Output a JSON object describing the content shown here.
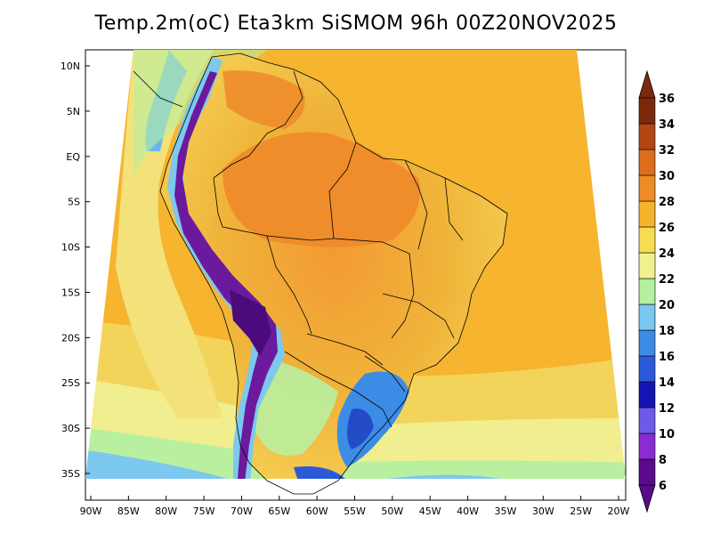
{
  "title": "Temp.2m(oC) Eta3km SiSMOM 96h 00Z20NOV2025",
  "map": {
    "lat_labels": [
      "10N",
      "5N",
      "EQ",
      "5S",
      "10S",
      "15S",
      "20S",
      "25S",
      "30S",
      "35S"
    ],
    "lat_values": [
      10,
      5,
      0,
      -5,
      -10,
      -15,
      -20,
      -25,
      -30,
      -35
    ],
    "lon_labels": [
      "90W",
      "85W",
      "80W",
      "75W",
      "70W",
      "65W",
      "60W",
      "55W",
      "50W",
      "45W",
      "40W",
      "35W",
      "30W",
      "25W",
      "20W"
    ],
    "lon_values": [
      -90,
      -85,
      -80,
      -75,
      -70,
      -65,
      -60,
      -55,
      -50,
      -45,
      -40,
      -35,
      -30,
      -25,
      -20
    ],
    "lat_range": [
      -38,
      12
    ],
    "lon_range": [
      -91,
      -19
    ],
    "variable": "2m temperature (°C)"
  },
  "colorbar": {
    "levels": [
      "6",
      "8",
      "10",
      "12",
      "14",
      "16",
      "18",
      "20",
      "22",
      "24",
      "26",
      "28",
      "30",
      "32",
      "34",
      "36"
    ],
    "colors": [
      "#5a0a8c",
      "#8a2ccf",
      "#6e5ae8",
      "#1414b4",
      "#2a5ad8",
      "#3c8ce6",
      "#78c8f0",
      "#b4f0a0",
      "#f0f090",
      "#f8dc50",
      "#f5b42d",
      "#ee8c28",
      "#dc6e1e",
      "#b44614",
      "#7a2a0a"
    ]
  },
  "colors": {
    "ocean_warm": "#f5b02e",
    "ocean_mild": "#f3d85a",
    "ocean_cool": "#f0ef8c",
    "coast_green": "#b9f0a0",
    "cold_blue": "#54a2ea",
    "andes_purple": "#6b1a9e",
    "land_hot": "#f08a2a",
    "boundary": "#000000"
  }
}
